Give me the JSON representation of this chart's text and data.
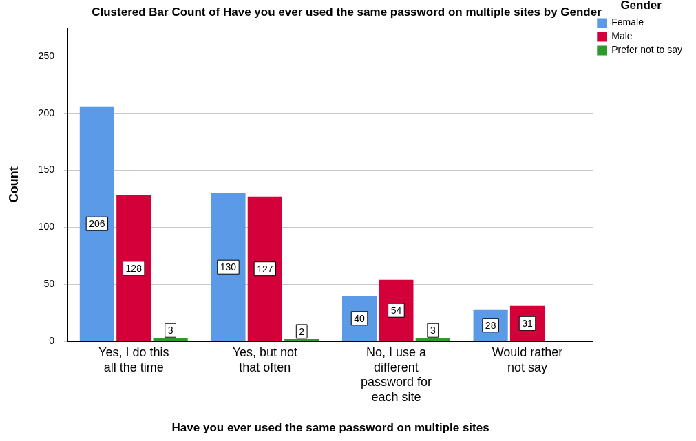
{
  "chart_data": {
    "type": "bar",
    "title": "Clustered Bar Count of Have you ever used the same password on multiple sites by Gender",
    "xlabel": "Have you ever used the same password on multiple sites",
    "ylabel": "Count",
    "legend_title": "Gender",
    "categories": [
      "Yes, I do this all the time",
      "Yes, but not that often",
      "No, I use a different password for each site",
      "Would rather not say"
    ],
    "series": [
      {
        "name": "Female",
        "color": "#5b9ae6",
        "values": [
          206,
          130,
          40,
          28
        ]
      },
      {
        "name": "Male",
        "color": "#d4003a",
        "values": [
          128,
          127,
          54,
          31
        ]
      },
      {
        "name": "Prefer not to say",
        "color": "#2e9a2e",
        "values": [
          3,
          2,
          3,
          null
        ]
      }
    ],
    "ylim": [
      0,
      275
    ],
    "yticks": [
      0,
      50,
      100,
      150,
      200,
      250
    ],
    "grid": "y",
    "legend": "top right",
    "data_labels": true
  }
}
